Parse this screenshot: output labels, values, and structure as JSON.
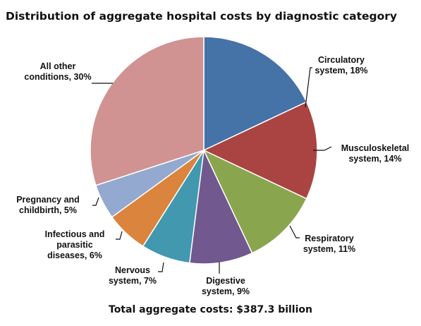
{
  "chart_data": {
    "type": "pie",
    "title": "Distribution of aggregate hospital costs by diagnostic category",
    "footer": "Total aggregate costs: $387.3 billion",
    "slices": [
      {
        "label_lines": [
          "Circulatory",
          "system, 18%"
        ],
        "value": 18,
        "color": "#4572a7"
      },
      {
        "label_lines": [
          "Musculoskeletal",
          "system, 14%"
        ],
        "value": 14,
        "color": "#a94442"
      },
      {
        "label_lines": [
          "Respiratory",
          "system, 11%"
        ],
        "value": 11,
        "color": "#89a54e"
      },
      {
        "label_lines": [
          "Digestive",
          "system, 9%"
        ],
        "value": 9,
        "color": "#71588f"
      },
      {
        "label_lines": [
          "Nervous",
          "system, 7%"
        ],
        "value": 7,
        "color": "#4198af"
      },
      {
        "label_lines": [
          "Infectious and",
          "parasitic",
          "diseases, 6%"
        ],
        "value": 6,
        "color": "#db843d"
      },
      {
        "label_lines": [
          "Pregnancy and",
          "childbirth, 5%"
        ],
        "value": 5,
        "color": "#93a9cf"
      },
      {
        "label_lines": [
          "All other",
          "conditions, 30%"
        ],
        "value": 30,
        "color": "#d09392"
      }
    ]
  }
}
